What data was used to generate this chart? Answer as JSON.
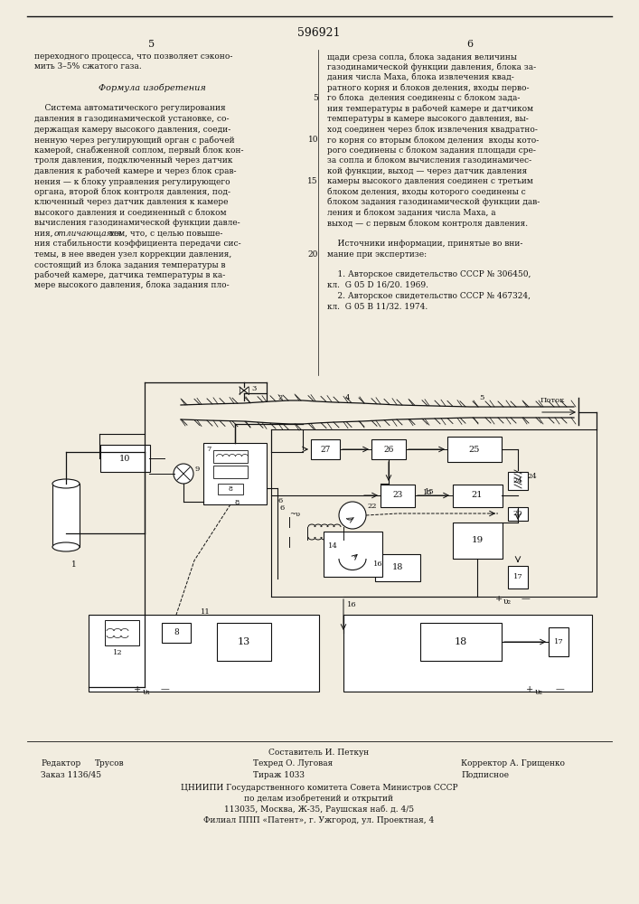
{
  "patent_number": "596921",
  "page_col_left": "5",
  "page_col_right": "6",
  "bg_color": "#f2ede0",
  "text_color": "#111111",
  "line_color": "#111111",
  "footer": {
    "compiler": "Составитель И. Петкун",
    "editor_label": "Редактор",
    "editor_name": "Трусов",
    "tech_label": "Техред О. Луговая",
    "corrector": "Корректор А. Грищенко",
    "order": "Заказ 1136/45",
    "circulation": "Тираж 1033",
    "subscription": "Подписное",
    "org1": "ЦНИИПИ Государственного комитета Совета Министров СССР",
    "org2": "по делам изобретений и открытий",
    "org3": "113035, Москва, Ж-35, Раушская наб. д. 4/5",
    "org4": "Филиал ППП «Патент», г. Ужгород, ул. Проектная, 4"
  }
}
